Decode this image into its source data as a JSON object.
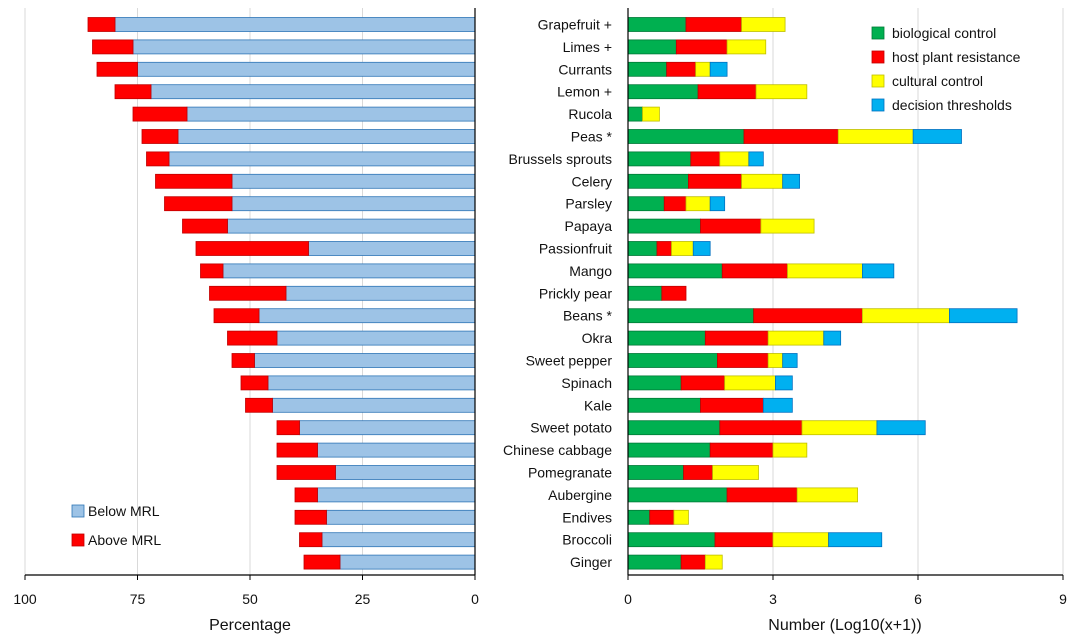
{
  "chart_data": [
    {
      "type": "bar",
      "orientation": "horizontal",
      "stacked": true,
      "x_reversed": true,
      "categories": [
        "Grapefruit +",
        "Limes +",
        "Currants",
        "Lemon +",
        "Rucola",
        "Peas *",
        "Brussels sprouts",
        "Celery",
        "Parsley",
        "Papaya",
        "Passionfruit",
        "Mango",
        "Prickly pear",
        "Beans *",
        "Okra",
        "Sweet pepper",
        "Spinach",
        "Kale",
        "Sweet potato",
        "Chinese cabbage",
        "Pomegranate",
        "Aubergine",
        "Endives",
        "Broccoli",
        "Ginger"
      ],
      "series": [
        {
          "name": "Below MRL",
          "color": "#9dc3e6",
          "values": [
            80,
            76,
            75,
            72,
            64,
            66,
            68,
            54,
            54,
            55,
            37,
            56,
            42,
            48,
            44,
            49,
            46,
            45,
            39,
            35,
            31,
            35,
            33,
            34,
            30
          ]
        },
        {
          "name": "Above MRL",
          "color": "#ff0000",
          "values": [
            6,
            9,
            9,
            8,
            12,
            8,
            5,
            17,
            15,
            10,
            25,
            5,
            17,
            10,
            11,
            5,
            6,
            6,
            5,
            9,
            13,
            5,
            7,
            5,
            8
          ]
        }
      ],
      "xlabel": "Percentage",
      "xlim": [
        0,
        100
      ],
      "xticks": [
        "100",
        "75",
        "50",
        "25",
        "0"
      ],
      "legend_position": "bottom-left",
      "grid": true
    },
    {
      "type": "bar",
      "orientation": "horizontal",
      "stacked": true,
      "categories": [
        "Grapefruit +",
        "Limes +",
        "Currants",
        "Lemon +",
        "Rucola",
        "Peas *",
        "Brussels sprouts",
        "Celery",
        "Parsley",
        "Papaya",
        "Passionfruit",
        "Mango",
        "Prickly pear",
        "Beans *",
        "Okra",
        "Sweet pepper",
        "Spinach",
        "Kale",
        "Sweet potato",
        "Chinese cabbage",
        "Pomegranate",
        "Aubergine",
        "Endives",
        "Broccoli",
        "Ginger"
      ],
      "series": [
        {
          "name": "biological control",
          "color": "#00b050",
          "values": [
            1.2,
            1.0,
            0.8,
            1.45,
            0.3,
            2.4,
            1.3,
            1.25,
            0.75,
            1.5,
            0.6,
            1.95,
            0.7,
            2.6,
            1.6,
            1.85,
            1.1,
            1.5,
            1.9,
            1.7,
            1.15,
            2.05,
            0.45,
            1.8,
            1.1
          ]
        },
        {
          "name": "host plant resistance",
          "color": "#ff0000",
          "values": [
            1.15,
            1.05,
            0.6,
            1.2,
            0,
            1.95,
            0.6,
            1.1,
            0.45,
            1.25,
            0.3,
            1.35,
            0.5,
            2.25,
            1.3,
            1.05,
            0.9,
            1.3,
            1.7,
            1.3,
            0.6,
            1.45,
            0.5,
            1.2,
            0.5
          ]
        },
        {
          "name": "cultural control",
          "color": "#ffff00",
          "values": [
            0.9,
            0.8,
            0.3,
            1.05,
            0.35,
            1.55,
            0.6,
            0.85,
            0.5,
            1.1,
            0.45,
            1.55,
            0,
            1.8,
            1.15,
            0.3,
            1.05,
            0,
            1.55,
            0.7,
            0.95,
            1.25,
            0.3,
            1.15,
            0.35
          ]
        },
        {
          "name": "decision thresholds",
          "color": "#00b0f0",
          "values": [
            0,
            0,
            0.35,
            0,
            0,
            1.0,
            0.3,
            0.35,
            0.3,
            0,
            0.35,
            0.65,
            0,
            1.4,
            0.35,
            0.3,
            0.35,
            0.6,
            1.0,
            0,
            0,
            0,
            0,
            1.1,
            0
          ]
        }
      ],
      "xlabel": "Number (Log10(x+1))",
      "xlim": [
        0,
        9
      ],
      "xticks": [
        "0",
        "3",
        "6",
        "9"
      ],
      "legend_position": "top-right",
      "grid": true
    }
  ]
}
